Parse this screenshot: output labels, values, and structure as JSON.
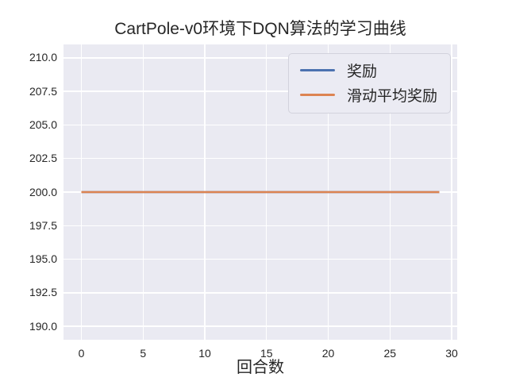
{
  "figure": {
    "background": "#ffffff"
  },
  "chart_data": {
    "type": "line",
    "title": "CartPole-v0环境下DQN算法的学习曲线",
    "xlabel": "回合数",
    "ylabel": "",
    "grid": true,
    "legend_position": "upper right",
    "xlim": [
      -1.45,
      30.45
    ],
    "ylim": [
      189,
      211
    ],
    "xtick_values": [
      0,
      5,
      10,
      15,
      20,
      25,
      30
    ],
    "xtick_labels": [
      "0",
      "5",
      "10",
      "15",
      "20",
      "25",
      "30"
    ],
    "ytick_values": [
      190,
      192.5,
      195,
      197.5,
      200,
      202.5,
      205,
      207.5,
      210
    ],
    "ytick_labels": [
      "190.0",
      "192.5",
      "195.0",
      "197.5",
      "200.0",
      "202.5",
      "205.0",
      "207.5",
      "210.0"
    ],
    "x": [
      0,
      1,
      2,
      3,
      4,
      5,
      6,
      7,
      8,
      9,
      10,
      11,
      12,
      13,
      14,
      15,
      16,
      17,
      18,
      19,
      20,
      21,
      22,
      23,
      24,
      25,
      26,
      27,
      28,
      29
    ],
    "series": [
      {
        "key": "reward",
        "name": "奖励",
        "color": "#4c72b0",
        "values": [
          200,
          200,
          200,
          200,
          200,
          200,
          200,
          200,
          200,
          200,
          200,
          200,
          200,
          200,
          200,
          200,
          200,
          200,
          200,
          200,
          200,
          200,
          200,
          200,
          200,
          200,
          200,
          200,
          200,
          200
        ]
      },
      {
        "key": "moving-average-reward",
        "name": "滑动平均奖励",
        "color": "#dd8452",
        "values": [
          200,
          200,
          200,
          200,
          200,
          200,
          200,
          200,
          200,
          200,
          200,
          200,
          200,
          200,
          200,
          200,
          200,
          200,
          200,
          200,
          200,
          200,
          200,
          200,
          200,
          200,
          200,
          200,
          200,
          200
        ]
      }
    ],
    "styles": {
      "axes_background": "#eaeaf2",
      "gridline_color": "#ffffff",
      "text_color": "#262626",
      "legend_background": "#ebebf3",
      "legend_border": "#d2d2dc"
    }
  }
}
